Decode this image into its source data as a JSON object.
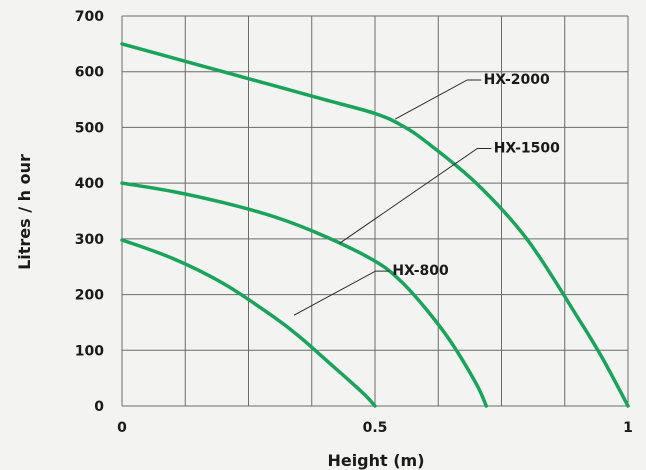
{
  "chart_data": {
    "type": "line",
    "title": "",
    "xlabel": "Height (m)",
    "ylabel": "Litres / h our",
    "xlim": [
      0,
      1
    ],
    "ylim": [
      0,
      700
    ],
    "grid": true,
    "x_ticks": [
      {
        "value": 0,
        "label": "0"
      },
      {
        "value": 0.5,
        "label": "0.5"
      },
      {
        "value": 1,
        "label": "1"
      }
    ],
    "y_ticks": [
      {
        "value": 0,
        "label": "0"
      },
      {
        "value": 100,
        "label": "100"
      },
      {
        "value": 200,
        "label": "200"
      },
      {
        "value": 300,
        "label": "300"
      },
      {
        "value": 400,
        "label": "400"
      },
      {
        "value": 500,
        "label": "500"
      },
      {
        "value": 600,
        "label": "600"
      },
      {
        "value": 700,
        "label": "700"
      }
    ],
    "line_color": "#1aa35a",
    "series": [
      {
        "name": "HX-2000",
        "x": [
          0,
          0.1,
          0.2,
          0.3,
          0.4,
          0.5,
          0.55,
          0.6,
          0.7,
          0.8,
          0.9,
          0.95,
          1.0
        ],
        "y": [
          650,
          625,
          600,
          575,
          550,
          525,
          505,
          475,
          400,
          300,
          160,
          85,
          0
        ],
        "label_x": 0.78,
        "label_y": 578,
        "anchor_x": 0.54,
        "anchor_y": 515
      },
      {
        "name": "HX-1500",
        "x": [
          0,
          0.1,
          0.2,
          0.3,
          0.4,
          0.5,
          0.55,
          0.6,
          0.65,
          0.7,
          0.72
        ],
        "y": [
          400,
          385,
          365,
          340,
          305,
          260,
          225,
          175,
          115,
          40,
          0
        ],
        "label_x": 0.8,
        "label_y": 455,
        "anchor_x": 0.43,
        "anchor_y": 292
      },
      {
        "name": "HX-800",
        "x": [
          0,
          0.1,
          0.2,
          0.3,
          0.35,
          0.4,
          0.45,
          0.48,
          0.5
        ],
        "y": [
          298,
          265,
          220,
          160,
          125,
          85,
          45,
          20,
          0
        ],
        "label_x": 0.59,
        "label_y": 235,
        "anchor_x": 0.34,
        "anchor_y": 163
      }
    ]
  }
}
